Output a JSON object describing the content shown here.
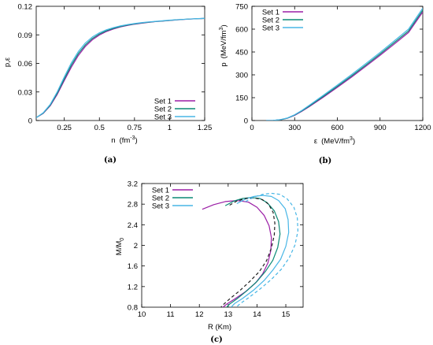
{
  "colors": {
    "set1": "#9b1fa6",
    "set2": "#0b8a76",
    "set3": "#48b6e6",
    "dark": "#222222"
  },
  "chart_data": [
    {
      "id": "a",
      "type": "line",
      "caption": "(a)",
      "ylabel": "p,ε",
      "xlabel_main": "n",
      "xlabel_unit_pre": "(fm",
      "xlabel_unit_sup": "-3",
      "xlabel_unit_post": ")",
      "xlim": [
        0.05,
        1.25
      ],
      "ylim": [
        0,
        0.12
      ],
      "xticks": [
        0.25,
        0.5,
        0.75,
        1,
        1.25
      ],
      "xtick_labels": [
        "0.25",
        "0.5",
        "0.75",
        "1",
        "1.25"
      ],
      "yticks": [
        0,
        0.03,
        0.06,
        0.09,
        0.12
      ],
      "ytick_labels": [
        "0",
        "0.03",
        "0.06",
        "0.09",
        "0.12"
      ],
      "legend_position": "bottom-right",
      "series": [
        {
          "name": "Set 1",
          "color": "#9b1fa6",
          "x": [
            0.05,
            0.1,
            0.15,
            0.2,
            0.25,
            0.3,
            0.35,
            0.4,
            0.45,
            0.5,
            0.55,
            0.6,
            0.65,
            0.7,
            0.75,
            0.8,
            0.85,
            0.9,
            0.95,
            1.0,
            1.05,
            1.1,
            1.15,
            1.2,
            1.25
          ],
          "y": [
            0.003,
            0.0075,
            0.0155,
            0.0275,
            0.042,
            0.056,
            0.0683,
            0.0778,
            0.0848,
            0.0898,
            0.0935,
            0.0962,
            0.0983,
            0.0999,
            0.1012,
            0.1022,
            0.1031,
            0.1039,
            0.1045,
            0.1051,
            0.1057,
            0.1062,
            0.1066,
            0.107,
            0.1073
          ]
        },
        {
          "name": "Set 2",
          "color": "#0b8a76",
          "x": [
            0.05,
            0.1,
            0.15,
            0.2,
            0.25,
            0.3,
            0.35,
            0.4,
            0.45,
            0.5,
            0.55,
            0.6,
            0.65,
            0.7,
            0.75,
            0.8,
            0.85,
            0.9,
            0.95,
            1.0,
            1.05,
            1.1,
            1.15,
            1.2,
            1.25
          ],
          "y": [
            0.003,
            0.0078,
            0.0162,
            0.0288,
            0.0438,
            0.0582,
            0.0703,
            0.0795,
            0.0862,
            0.0909,
            0.0943,
            0.0968,
            0.0988,
            0.1003,
            0.1015,
            0.1025,
            0.1033,
            0.104,
            0.1046,
            0.1052,
            0.1058,
            0.1063,
            0.1067,
            0.107,
            0.1073
          ]
        },
        {
          "name": "Set 3",
          "color": "#48b6e6",
          "x": [
            0.05,
            0.1,
            0.15,
            0.2,
            0.25,
            0.3,
            0.35,
            0.4,
            0.45,
            0.5,
            0.55,
            0.6,
            0.65,
            0.7,
            0.75,
            0.8,
            0.85,
            0.9,
            0.95,
            1.0,
            1.05,
            1.1,
            1.15,
            1.2,
            1.25
          ],
          "y": [
            0.003,
            0.0082,
            0.017,
            0.0302,
            0.0458,
            0.0605,
            0.0725,
            0.0815,
            0.0878,
            0.0922,
            0.0953,
            0.0976,
            0.0994,
            0.1008,
            0.1019,
            0.1028,
            0.1036,
            0.1042,
            0.1048,
            0.1054,
            0.1059,
            0.1063,
            0.1067,
            0.1071,
            0.1074
          ]
        }
      ]
    },
    {
      "id": "b",
      "type": "line",
      "caption": "(b)",
      "ylabel_main": "p",
      "ylabel_unit_pre": "(MeV/fm",
      "ylabel_unit_sup": "3",
      "ylabel_unit_post": ")",
      "xlabel_main": "ε",
      "xlabel_unit_pre": "(MeV/fm",
      "xlabel_unit_sup": "3",
      "xlabel_unit_post": ")",
      "xlim": [
        0,
        1200
      ],
      "ylim": [
        0,
        750
      ],
      "xticks": [
        0,
        300,
        600,
        900,
        1200
      ],
      "xtick_labels": [
        "0",
        "300",
        "600",
        "900",
        "1200"
      ],
      "yticks": [
        0,
        150,
        300,
        450,
        600,
        750
      ],
      "ytick_labels": [
        "0",
        "150",
        "300",
        "450",
        "600",
        "750"
      ],
      "legend_position": "top-left",
      "series": [
        {
          "name": "Set 1",
          "color": "#9b1fa6",
          "x": [
            100,
            150,
            200,
            250,
            300,
            350,
            400,
            500,
            600,
            700,
            800,
            900,
            1000,
            1100,
            1200
          ],
          "y": [
            0,
            1,
            5,
            15,
            34,
            60,
            89,
            152,
            218,
            285,
            356,
            428,
            502,
            578,
            713
          ]
        },
        {
          "name": "Set 2",
          "color": "#0b8a76",
          "x": [
            100,
            150,
            200,
            250,
            300,
            350,
            400,
            500,
            600,
            700,
            800,
            900,
            1000,
            1100,
            1200
          ],
          "y": [
            0,
            1,
            5,
            16,
            36,
            63,
            93,
            158,
            225,
            293,
            364,
            437,
            512,
            588,
            725
          ]
        },
        {
          "name": "Set 3",
          "color": "#48b6e6",
          "x": [
            100,
            150,
            200,
            250,
            300,
            350,
            400,
            500,
            600,
            700,
            800,
            900,
            1000,
            1100,
            1200
          ],
          "y": [
            0,
            1,
            6,
            17,
            38,
            66,
            98,
            165,
            233,
            302,
            374,
            447,
            523,
            600,
            738
          ]
        }
      ]
    },
    {
      "id": "c",
      "type": "line",
      "caption": "(c)",
      "ylabel_pre": "M/M",
      "ylabel_sub": "0",
      "xlabel": "R  (Km)",
      "xlim": [
        10,
        15.6
      ],
      "ylim": [
        0.8,
        3.2
      ],
      "xticks": [
        10,
        11,
        12,
        13,
        14,
        15
      ],
      "xtick_labels": [
        "10",
        "11",
        "12",
        "13",
        "14",
        "15"
      ],
      "yticks": [
        0.8,
        1.2,
        1.6,
        2,
        2.4,
        2.8,
        3.2
      ],
      "ytick_labels": [
        "0.8",
        "1.2",
        "1.6",
        "2",
        "2.4",
        "2.8",
        "3.2"
      ],
      "legend_position": "top-left",
      "series": [
        {
          "name": "Set 1",
          "color": "#9b1fa6",
          "dash": false,
          "x": [
            12.1,
            12.5,
            12.9,
            13.3,
            13.7,
            14.0,
            14.25,
            14.42,
            14.5,
            14.48,
            14.38,
            14.2,
            13.95,
            13.6,
            13.2,
            12.95,
            12.82
          ],
          "y": [
            2.7,
            2.79,
            2.85,
            2.87,
            2.84,
            2.74,
            2.58,
            2.38,
            2.15,
            1.9,
            1.66,
            1.45,
            1.27,
            1.1,
            0.95,
            0.86,
            0.8
          ]
        },
        {
          "name": "Set 2",
          "color": "#0b8a76",
          "dash": false,
          "x": [
            12.9,
            13.2,
            13.5,
            13.8,
            14.1,
            14.35,
            14.6,
            14.75,
            14.8,
            14.72,
            14.55,
            14.3,
            14.0,
            13.65,
            13.3,
            13.05,
            12.95
          ],
          "y": [
            2.77,
            2.86,
            2.91,
            2.93,
            2.91,
            2.83,
            2.67,
            2.46,
            2.22,
            1.96,
            1.71,
            1.5,
            1.3,
            1.12,
            0.96,
            0.86,
            0.8
          ]
        },
        {
          "name": "Set 3",
          "color": "#48b6e6",
          "dash": false,
          "x": [
            13.3,
            13.6,
            13.9,
            14.2,
            14.5,
            14.75,
            14.98,
            15.08,
            15.1,
            15.0,
            14.82,
            14.55,
            14.25,
            13.88,
            13.5,
            13.22,
            13.1
          ],
          "y": [
            2.81,
            2.9,
            2.95,
            2.97,
            2.95,
            2.87,
            2.71,
            2.5,
            2.25,
            1.98,
            1.73,
            1.52,
            1.32,
            1.13,
            0.97,
            0.87,
            0.8
          ]
        },
        {
          "name": "",
          "color": "#222222",
          "dash": true,
          "x": [
            13.05,
            13.3,
            13.6,
            13.9,
            14.18,
            14.4,
            14.56,
            14.62,
            14.6,
            14.5,
            14.33,
            14.08,
            13.75,
            13.4,
            13.05,
            12.85,
            12.75
          ],
          "y": [
            2.78,
            2.86,
            2.91,
            2.92,
            2.89,
            2.8,
            2.64,
            2.43,
            2.2,
            1.95,
            1.7,
            1.49,
            1.3,
            1.12,
            0.96,
            0.86,
            0.8
          ]
        },
        {
          "name": "",
          "color": "#48b6e6",
          "dash": true,
          "x": [
            13.6,
            13.9,
            14.2,
            14.5,
            14.8,
            15.05,
            15.28,
            15.4,
            15.42,
            15.32,
            15.12,
            14.85,
            14.5,
            14.1,
            13.7,
            13.42,
            13.28
          ],
          "y": [
            2.85,
            2.94,
            2.99,
            3.01,
            2.99,
            2.9,
            2.74,
            2.53,
            2.28,
            2.01,
            1.76,
            1.54,
            1.34,
            1.15,
            0.98,
            0.87,
            0.8
          ]
        }
      ]
    }
  ]
}
